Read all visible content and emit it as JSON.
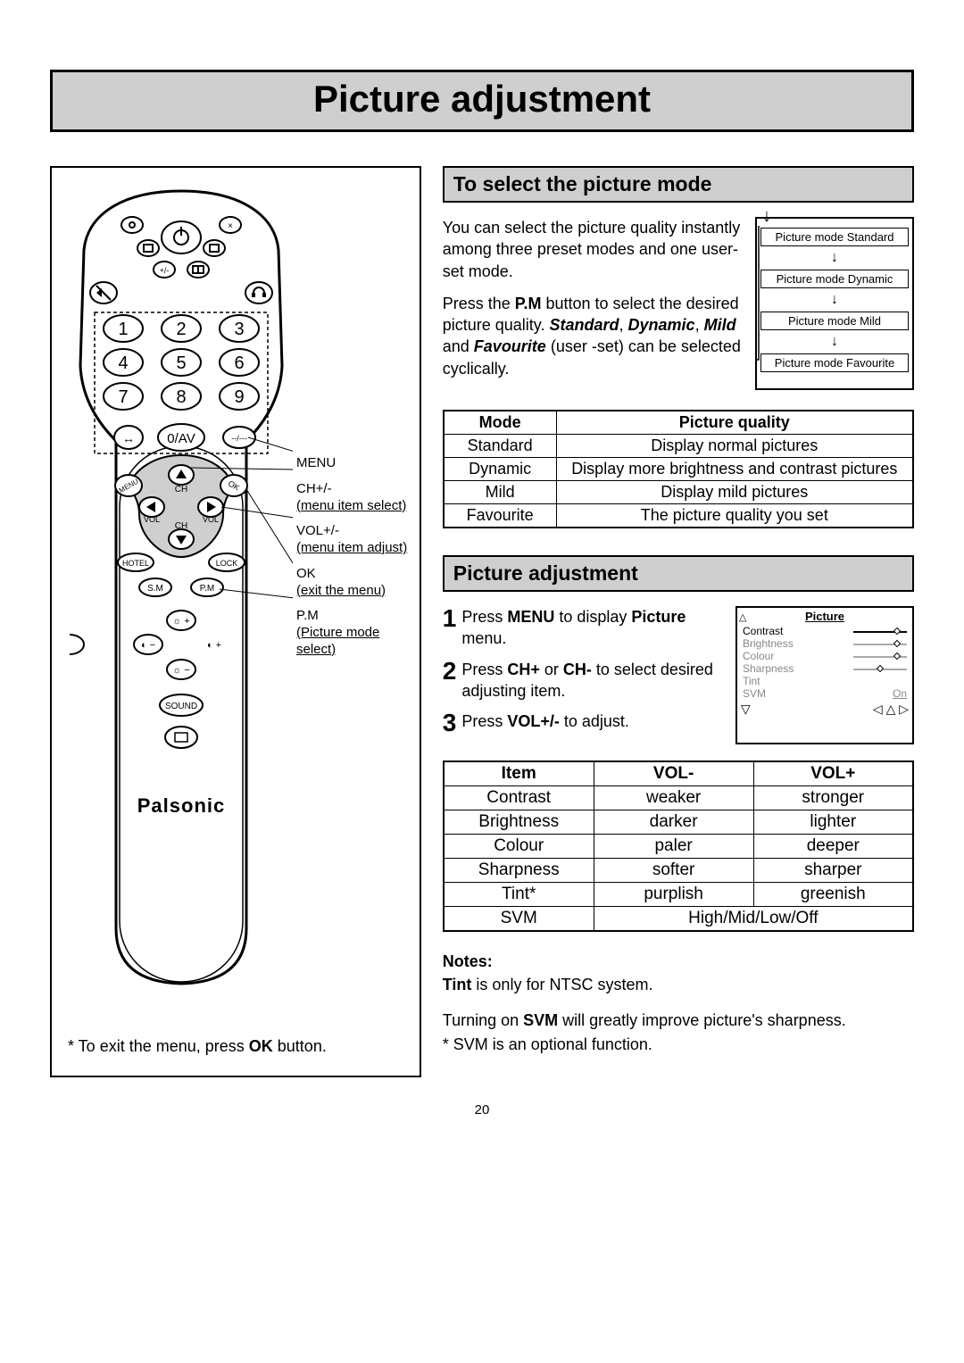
{
  "page_title": "Picture adjustment",
  "page_number": "20",
  "remote": {
    "brand": "Palsonic",
    "num_keys": [
      "1",
      "2",
      "3",
      "4",
      "5",
      "6",
      "7",
      "8",
      "9"
    ],
    "av_key": "0/AV",
    "dash_key": "--/---",
    "menu_label": "MENU",
    "ok_label": "OK",
    "ch_label": "CH",
    "vol_label": "VOL",
    "hotel_label": "HOTEL",
    "lock_label": "LOCK",
    "sm_label": "S.M",
    "pm_label": "P.M",
    "sound_label": "SOUND",
    "exit_note_prefix": "* To exit the menu, press ",
    "exit_note_bold": "OK",
    "exit_note_suffix": " button."
  },
  "callouts": {
    "menu": "MENU",
    "ch": "CH+/-",
    "ch_desc": "(menu item select)",
    "vol": "VOL+/-",
    "vol_desc": "(menu item adjust)",
    "ok": "OK",
    "ok_desc": "(exit the menu)",
    "pm": "P.M",
    "pm_desc": "(Picture mode select)"
  },
  "section1": {
    "header": "To select the picture mode",
    "para1": "You can select the picture quality instantly among three preset modes and one user-set mode.",
    "para2_pre": "Press the ",
    "para2_b1": "P.M",
    "para2_mid": " button to select the desired picture quality. ",
    "para2_bi1": "Standard",
    "para2_sep1": ", ",
    "para2_bi2": "Dynamic",
    "para2_sep2": ", ",
    "para2_bi3": "Mild",
    "para2_sep3": " and ",
    "para2_bi4": "Favourite",
    "para2_post": " (user -set) can be selected cyclically.",
    "cycle": [
      "Picture mode Standard",
      "Picture mode Dynamic",
      "Picture mode Mild",
      "Picture mode Favourite"
    ],
    "table": {
      "head": [
        "Mode",
        "Picture quality"
      ],
      "rows": [
        [
          "Standard",
          "Display normal pictures"
        ],
        [
          "Dynamic",
          "Display more brightness and contrast pictures"
        ],
        [
          "Mild",
          "Display mild pictures"
        ],
        [
          "Favourite",
          "The picture quality you set"
        ]
      ]
    }
  },
  "section2": {
    "header": "Picture adjustment",
    "steps": [
      {
        "num": "1",
        "pre": "Press ",
        "b": "MENU",
        "mid": " to display ",
        "b2": "Picture",
        "post": " menu."
      },
      {
        "num": "2",
        "pre": "Press ",
        "b": "CH+",
        "mid": " or ",
        "b2": "CH-",
        "post": " to select desired adjusting item."
      },
      {
        "num": "3",
        "pre": "Press ",
        "b": "VOL+/-",
        "mid": "",
        "b2": "",
        "post": " to adjust."
      }
    ],
    "menu_diag": {
      "title": "Picture",
      "items": [
        {
          "name": "Contrast",
          "active": true,
          "knob": 0.85
        },
        {
          "name": "Brightness",
          "active": false,
          "knob": 0.85
        },
        {
          "name": "Colour",
          "active": false,
          "knob": 0.85
        },
        {
          "name": "Sharpness",
          "active": false,
          "knob": 0.5
        },
        {
          "name": "Tint",
          "active": false,
          "knob": null
        },
        {
          "name": "SVM",
          "active": false,
          "val": "On"
        }
      ]
    },
    "table": {
      "head": [
        "Item",
        "VOL-",
        "VOL+"
      ],
      "rows": [
        [
          "Contrast",
          "weaker",
          "stronger"
        ],
        [
          "Brightness",
          "darker",
          "lighter"
        ],
        [
          "Colour",
          "paler",
          "deeper"
        ],
        [
          "Sharpness",
          "softer",
          "sharper"
        ],
        [
          "Tint*",
          "purplish",
          "greenish"
        ]
      ],
      "svm_row": [
        "SVM",
        "High/Mid/Low/Off"
      ]
    },
    "notes": {
      "label": "Notes:",
      "line1_b": "Tint",
      "line1_rest": " is only for NTSC system.",
      "line2_pre": "Turning on ",
      "line2_b": "SVM",
      "line2_post": " will greatly improve picture's sharpness.",
      "line3": "* SVM is an optional function."
    }
  }
}
